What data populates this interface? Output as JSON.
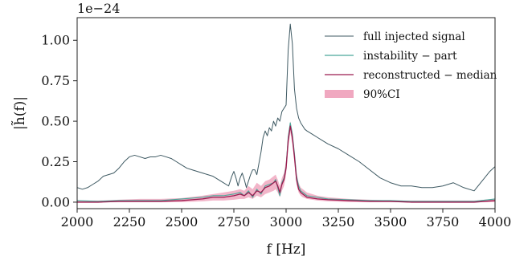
{
  "chart_data": {
    "type": "line",
    "xlabel": "f [Hz]",
    "ylabel": "|h̃(f)|",
    "multiplier": "1e−24",
    "xlim": [
      2000,
      4000
    ],
    "ylim": [
      -0.04,
      1.14
    ],
    "x_ticks": [
      2000,
      2250,
      2500,
      2750,
      3000,
      3250,
      3500,
      3750,
      4000
    ],
    "x_tick_labels": [
      "2000",
      "2250",
      "2500",
      "2750",
      "3000",
      "3250",
      "3500",
      "3750",
      "4000"
    ],
    "y_ticks": [
      0.0,
      0.25,
      0.5,
      0.75,
      1.0
    ],
    "y_tick_labels": [
      "0.00",
      "0.25",
      "0.50",
      "0.75",
      "1.00"
    ],
    "grid": false,
    "legend_position": "top-right",
    "legend": [
      "full injected signal",
      "instability − part",
      "reconstructed − median",
      "90%CI"
    ],
    "colors": {
      "full": "#3f5a63",
      "instability": "#4aa89a",
      "median": "#9b1b4f",
      "ci": "#f0a8c0",
      "axis": "#222222"
    },
    "series": [
      {
        "name": "full injected signal",
        "x": [
          2000,
          2025,
          2050,
          2075,
          2100,
          2125,
          2150,
          2175,
          2200,
          2225,
          2250,
          2275,
          2300,
          2325,
          2350,
          2375,
          2400,
          2425,
          2450,
          2475,
          2500,
          2525,
          2550,
          2575,
          2600,
          2625,
          2650,
          2675,
          2700,
          2725,
          2740,
          2750,
          2760,
          2770,
          2780,
          2790,
          2800,
          2810,
          2820,
          2830,
          2840,
          2850,
          2860,
          2870,
          2880,
          2890,
          2900,
          2910,
          2920,
          2930,
          2940,
          2950,
          2960,
          2970,
          2980,
          2990,
          3000,
          3010,
          3020,
          3030,
          3040,
          3050,
          3060,
          3070,
          3080,
          3090,
          3100,
          3125,
          3150,
          3175,
          3200,
          3250,
          3300,
          3350,
          3400,
          3450,
          3500,
          3550,
          3600,
          3650,
          3700,
          3750,
          3800,
          3850,
          3900,
          3950,
          3975,
          4000
        ],
        "values": [
          0.09,
          0.08,
          0.09,
          0.11,
          0.13,
          0.16,
          0.17,
          0.18,
          0.21,
          0.25,
          0.28,
          0.29,
          0.28,
          0.27,
          0.28,
          0.28,
          0.29,
          0.28,
          0.27,
          0.25,
          0.23,
          0.21,
          0.2,
          0.19,
          0.18,
          0.17,
          0.16,
          0.14,
          0.12,
          0.1,
          0.16,
          0.19,
          0.15,
          0.1,
          0.15,
          0.18,
          0.14,
          0.09,
          0.13,
          0.17,
          0.2,
          0.2,
          0.17,
          0.24,
          0.31,
          0.4,
          0.44,
          0.41,
          0.46,
          0.44,
          0.5,
          0.47,
          0.52,
          0.5,
          0.56,
          0.58,
          0.6,
          0.94,
          1.1,
          0.98,
          0.7,
          0.58,
          0.52,
          0.49,
          0.47,
          0.45,
          0.44,
          0.42,
          0.4,
          0.38,
          0.36,
          0.33,
          0.29,
          0.25,
          0.2,
          0.15,
          0.12,
          0.1,
          0.1,
          0.09,
          0.09,
          0.1,
          0.12,
          0.09,
          0.07,
          0.15,
          0.19,
          0.22
        ]
      },
      {
        "name": "instability − part",
        "x": [
          2000,
          2100,
          2200,
          2300,
          2400,
          2500,
          2600,
          2650,
          2700,
          2750,
          2780,
          2800,
          2820,
          2840,
          2860,
          2880,
          2900,
          2920,
          2940,
          2950,
          2960,
          2970,
          2980,
          2990,
          3000,
          3010,
          3020,
          3030,
          3040,
          3050,
          3060,
          3070,
          3080,
          3100,
          3150,
          3200,
          3300,
          3400,
          3500,
          3600,
          3700,
          3800,
          3900,
          4000
        ],
        "values": [
          0.01,
          0.005,
          0.01,
          0.01,
          0.01,
          0.02,
          0.03,
          0.04,
          0.04,
          0.05,
          0.06,
          0.04,
          0.07,
          0.03,
          0.08,
          0.05,
          0.1,
          0.11,
          0.12,
          0.14,
          0.09,
          0.04,
          0.12,
          0.15,
          0.22,
          0.4,
          0.49,
          0.42,
          0.3,
          0.16,
          0.1,
          0.07,
          0.06,
          0.04,
          0.03,
          0.02,
          0.015,
          0.01,
          0.01,
          0.005,
          0.005,
          0.005,
          0.005,
          0.02
        ]
      },
      {
        "name": "reconstructed − median",
        "x": [
          2000,
          2100,
          2200,
          2300,
          2400,
          2500,
          2600,
          2650,
          2700,
          2750,
          2780,
          2800,
          2820,
          2840,
          2860,
          2880,
          2900,
          2920,
          2940,
          2950,
          2960,
          2970,
          2980,
          2990,
          3000,
          3010,
          3020,
          3030,
          3040,
          3050,
          3060,
          3070,
          3080,
          3100,
          3150,
          3200,
          3300,
          3400,
          3500,
          3600,
          3700,
          3800,
          3900,
          4000
        ],
        "values": [
          0.0,
          0.0,
          0.005,
          0.005,
          0.005,
          0.01,
          0.02,
          0.03,
          0.03,
          0.04,
          0.05,
          0.04,
          0.06,
          0.04,
          0.07,
          0.06,
          0.09,
          0.1,
          0.12,
          0.13,
          0.1,
          0.06,
          0.11,
          0.14,
          0.21,
          0.38,
          0.47,
          0.4,
          0.28,
          0.14,
          0.08,
          0.06,
          0.05,
          0.03,
          0.02,
          0.015,
          0.01,
          0.005,
          0.005,
          0.0,
          0.0,
          0.0,
          0.0,
          0.01
        ]
      },
      {
        "name": "90%CI",
        "x": [
          2000,
          2100,
          2200,
          2300,
          2400,
          2500,
          2600,
          2650,
          2700,
          2750,
          2780,
          2800,
          2820,
          2840,
          2860,
          2880,
          2900,
          2920,
          2940,
          2950,
          2960,
          2970,
          2980,
          2990,
          3000,
          3010,
          3020,
          3030,
          3040,
          3050,
          3060,
          3070,
          3080,
          3100,
          3150,
          3200,
          3300,
          3400,
          3500,
          3600,
          3700,
          3800,
          3900,
          4000
        ],
        "lower": [
          0.0,
          0.0,
          0.0,
          0.0,
          0.0,
          0.0,
          0.005,
          0.01,
          0.01,
          0.015,
          0.02,
          0.02,
          0.03,
          0.02,
          0.04,
          0.03,
          0.05,
          0.06,
          0.07,
          0.08,
          0.06,
          0.03,
          0.07,
          0.1,
          0.17,
          0.33,
          0.43,
          0.36,
          0.24,
          0.11,
          0.06,
          0.04,
          0.03,
          0.02,
          0.01,
          0.005,
          0.0,
          0.0,
          0.0,
          0.0,
          0.0,
          0.0,
          0.0,
          0.0
        ],
        "upper": [
          0.01,
          0.01,
          0.015,
          0.02,
          0.02,
          0.025,
          0.04,
          0.05,
          0.06,
          0.07,
          0.08,
          0.07,
          0.1,
          0.08,
          0.12,
          0.1,
          0.13,
          0.14,
          0.16,
          0.17,
          0.14,
          0.1,
          0.15,
          0.18,
          0.26,
          0.42,
          0.5,
          0.44,
          0.32,
          0.18,
          0.12,
          0.09,
          0.08,
          0.06,
          0.04,
          0.03,
          0.02,
          0.015,
          0.01,
          0.01,
          0.01,
          0.01,
          0.01,
          0.02
        ]
      }
    ]
  }
}
